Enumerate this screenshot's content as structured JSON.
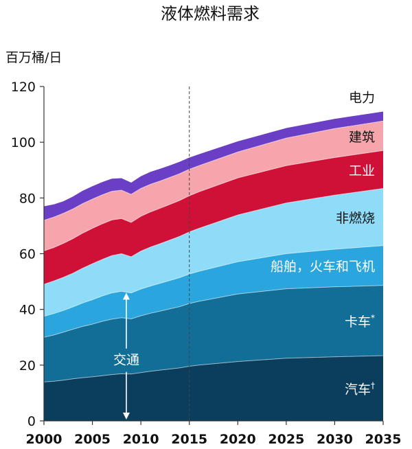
{
  "chart_data": {
    "type": "area",
    "stacked": true,
    "title": "液体燃料需求",
    "ylabel": "百万桶/日",
    "xlabel": "",
    "xlim": [
      2000,
      2035
    ],
    "ylim": [
      0,
      120
    ],
    "x_ticks": [
      "2000",
      "2005",
      "2010",
      "2015",
      "2020",
      "2025",
      "2030",
      "2035"
    ],
    "y_ticks": [
      "0",
      "20",
      "40",
      "60",
      "80",
      "100",
      "120"
    ],
    "grid": false,
    "legend": "inline-right",
    "forecast_divider_x": 2015,
    "transport_annotation": "交通",
    "x": [
      2000,
      2001,
      2002,
      2003,
      2004,
      2005,
      2006,
      2007,
      2008,
      2009,
      2010,
      2011,
      2012,
      2013,
      2014,
      2015,
      2016,
      2020,
      2025,
      2030,
      2035
    ],
    "series": [
      {
        "name": "汽车",
        "marker": "†",
        "color": "#0b3d5c",
        "values": [
          14,
          14.2,
          14.6,
          15.1,
          15.5,
          15.8,
          16.2,
          16.6,
          16.9,
          16.8,
          17.3,
          17.8,
          18.2,
          18.6,
          19.0,
          19.6,
          20.0,
          21.3,
          22.5,
          23.0,
          23.4
        ]
      },
      {
        "name": "卡车",
        "marker": "*",
        "color": "#126e96",
        "values": [
          16,
          16.6,
          17.2,
          17.8,
          18.4,
          18.9,
          19.5,
          19.9,
          20.1,
          19.8,
          20.4,
          20.8,
          21.2,
          21.6,
          22.0,
          22.5,
          22.9,
          24.2,
          24.9,
          25.1,
          25.2
        ]
      },
      {
        "name": "船舶，火车和飞机",
        "marker": "",
        "color": "#2aa5dd",
        "values": [
          7.5,
          7.7,
          7.8,
          8.0,
          8.4,
          8.8,
          9.1,
          9.4,
          9.5,
          9.3,
          9.6,
          9.8,
          10.0,
          10.2,
          10.4,
          10.6,
          10.8,
          11.6,
          12.6,
          13.5,
          14.3
        ]
      },
      {
        "name": "非燃烧",
        "marker": "",
        "color": "#8fdcf8",
        "values": [
          11.5,
          11.7,
          11.9,
          12.1,
          12.5,
          12.9,
          13.1,
          13.4,
          13.5,
          13.0,
          13.6,
          14.0,
          14.2,
          14.5,
          14.8,
          15.1,
          15.4,
          16.8,
          18.2,
          19.4,
          20.5
        ]
      },
      {
        "name": "工业",
        "marker": "",
        "color": "#cf1138",
        "values": [
          12,
          12.0,
          12.2,
          12.4,
          12.6,
          12.7,
          12.8,
          12.8,
          12.6,
          12.3,
          12.5,
          12.6,
          12.7,
          12.8,
          12.9,
          13.0,
          13.1,
          13.3,
          13.4,
          13.5,
          13.6
        ]
      },
      {
        "name": "建筑",
        "marker": "",
        "color": "#f5a5ab",
        "values": [
          11,
          10.9,
          10.8,
          10.7,
          10.6,
          10.5,
          10.4,
          10.3,
          10.2,
          10.1,
          10.0,
          9.9,
          9.8,
          9.7,
          9.6,
          9.5,
          9.4,
          9.3,
          9.9,
          10.4,
          10.6
        ]
      },
      {
        "name": "电力",
        "marker": "",
        "color": "#6a3fc6",
        "values": [
          5,
          4.6,
          4.3,
          4.4,
          4.6,
          4.6,
          4.6,
          4.5,
          4.3,
          4.2,
          4.4,
          4.5,
          4.4,
          4.3,
          4.3,
          4.2,
          4.1,
          3.8,
          3.6,
          3.5,
          3.4
        ]
      }
    ]
  }
}
